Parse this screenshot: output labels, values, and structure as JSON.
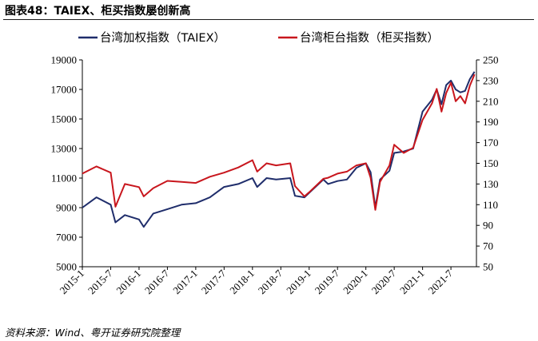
{
  "figure": {
    "title": "图表48：TAIEX、柜买指数屡创新高",
    "source": "资料来源：Wind、粤开证券研究院整理"
  },
  "chart_data": {
    "type": "line",
    "title": "图表48：TAIEX、柜买指数屡创新高",
    "x": [
      "2015-1",
      "2015-4",
      "2015-7",
      "2015-8",
      "2015-10",
      "2016-1",
      "2016-2",
      "2016-4",
      "2016-7",
      "2016-10",
      "2017-1",
      "2017-4",
      "2017-7",
      "2017-10",
      "2018-1",
      "2018-2",
      "2018-4",
      "2018-6",
      "2018-9",
      "2018-10",
      "2018-12",
      "2019-1",
      "2019-4",
      "2019-5",
      "2019-7",
      "2019-9",
      "2019-11",
      "2020-1",
      "2020-2",
      "2020-3",
      "2020-4",
      "2020-6",
      "2020-7",
      "2020-9",
      "2020-11",
      "2021-1",
      "2021-3",
      "2021-4",
      "2021-5",
      "2021-6",
      "2021-7",
      "2021-8",
      "2021-9",
      "2021-10",
      "2021-11",
      "2021-12"
    ],
    "series": [
      {
        "name": "台湾加权指数（TAIEX）",
        "axis": "left",
        "color": "#1f2d6b",
        "values": [
          9000,
          9700,
          9200,
          8000,
          8500,
          8200,
          7700,
          8600,
          8900,
          9200,
          9300,
          9700,
          10400,
          10600,
          11000,
          10400,
          11000,
          10900,
          11000,
          9800,
          9700,
          10000,
          10900,
          10600,
          10800,
          10900,
          11700,
          12000,
          11400,
          9000,
          10900,
          11500,
          12700,
          12800,
          13000,
          15500,
          16300,
          17000,
          16000,
          17300,
          17600,
          17000,
          16800,
          16900,
          17700,
          18200
        ]
      },
      {
        "name": "台湾柜台指数（柜买指数）",
        "axis": "right",
        "color": "#c8161d",
        "values": [
          140,
          147,
          141,
          108,
          130,
          127,
          118,
          126,
          133,
          132,
          131,
          137,
          141,
          146,
          153,
          142,
          150,
          148,
          150,
          128,
          118,
          122,
          135,
          136,
          140,
          142,
          148,
          150,
          136,
          105,
          132,
          148,
          168,
          160,
          165,
          192,
          208,
          222,
          200,
          218,
          228,
          210,
          215,
          208,
          225,
          236
        ]
      }
    ],
    "x_tick_labels": [
      "2015-1",
      "2015-7",
      "2016-1",
      "2016-7",
      "2017-1",
      "2017-7",
      "2018-1",
      "2018-7",
      "2019-1",
      "2019-7",
      "2020-1",
      "2020-7",
      "2021-1",
      "2021-7"
    ],
    "y_left": {
      "min": 5000,
      "max": 19000,
      "ticks": [
        5000,
        7000,
        9000,
        11000,
        13000,
        15000,
        17000,
        19000
      ]
    },
    "y_right": {
      "min": 50,
      "max": 250,
      "ticks": [
        50,
        70,
        90,
        110,
        130,
        150,
        170,
        190,
        210,
        230,
        250
      ]
    },
    "legend": {
      "placement": "top",
      "entries": [
        "台湾加权指数（TAIEX）",
        "台湾柜台指数（柜买指数）"
      ]
    },
    "grid": false
  }
}
